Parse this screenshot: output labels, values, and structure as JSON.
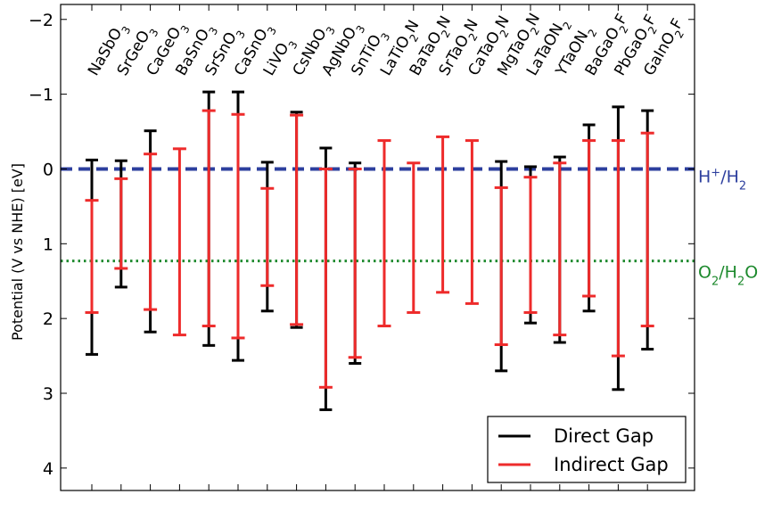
{
  "chart_data": {
    "type": "errorbar",
    "ylabel": "Potential (V vs NHE) [eV]",
    "ylim": [
      4.3,
      -2.2
    ],
    "y_inverted": true,
    "yticks": [
      -2,
      -1,
      0,
      1,
      2,
      3,
      4
    ],
    "ytick_labels": [
      "−2",
      "−1",
      "0",
      "1",
      "2",
      "3",
      "4"
    ],
    "grid": false,
    "legend_position": "lower right",
    "categories": [
      {
        "name": "NaSbO3",
        "parts": [
          [
            "NaSbO",
            0
          ],
          [
            "3",
            1
          ]
        ]
      },
      {
        "name": "SrGeO3",
        "parts": [
          [
            "SrGeO",
            0
          ],
          [
            "3",
            1
          ]
        ]
      },
      {
        "name": "CaGeO3",
        "parts": [
          [
            "CaGeO",
            0
          ],
          [
            "3",
            1
          ]
        ]
      },
      {
        "name": "BaSnO3",
        "parts": [
          [
            "BaSnO",
            0
          ],
          [
            "3",
            1
          ]
        ]
      },
      {
        "name": "SrSnO3",
        "parts": [
          [
            "SrSnO",
            0
          ],
          [
            "3",
            1
          ]
        ]
      },
      {
        "name": "CaSnO3",
        "parts": [
          [
            "CaSnO",
            0
          ],
          [
            "3",
            1
          ]
        ]
      },
      {
        "name": "LiVO3",
        "parts": [
          [
            "LiVO",
            0
          ],
          [
            "3",
            1
          ]
        ]
      },
      {
        "name": "CsNbO3",
        "parts": [
          [
            "CsNbO",
            0
          ],
          [
            "3",
            1
          ]
        ]
      },
      {
        "name": "AgNbO3",
        "parts": [
          [
            "AgNbO",
            0
          ],
          [
            "3",
            1
          ]
        ]
      },
      {
        "name": "SnTiO3",
        "parts": [
          [
            "SnTiO",
            0
          ],
          [
            "3",
            1
          ]
        ]
      },
      {
        "name": "LaTiO2N",
        "parts": [
          [
            "LaTiO",
            0
          ],
          [
            "2",
            1
          ],
          [
            "N",
            0
          ]
        ]
      },
      {
        "name": "BaTaO2N",
        "parts": [
          [
            "BaTaO",
            0
          ],
          [
            "2",
            1
          ],
          [
            "N",
            0
          ]
        ]
      },
      {
        "name": "SrTaO2N",
        "parts": [
          [
            "SrTaO",
            0
          ],
          [
            "2",
            1
          ],
          [
            "N",
            0
          ]
        ]
      },
      {
        "name": "CaTaO2N",
        "parts": [
          [
            "CaTaO",
            0
          ],
          [
            "2",
            1
          ],
          [
            "N",
            0
          ]
        ]
      },
      {
        "name": "MgTaO2N",
        "parts": [
          [
            "MgTaO",
            0
          ],
          [
            "2",
            1
          ],
          [
            "N",
            0
          ]
        ]
      },
      {
        "name": "LaTaON2",
        "parts": [
          [
            "LaTaON",
            0
          ],
          [
            "2",
            1
          ]
        ]
      },
      {
        "name": "YTaON2",
        "parts": [
          [
            "YTaON",
            0
          ],
          [
            "2",
            1
          ]
        ]
      },
      {
        "name": "BaGaO2F",
        "parts": [
          [
            "BaGaO",
            0
          ],
          [
            "2",
            1
          ],
          [
            "F",
            0
          ]
        ]
      },
      {
        "name": "PbGaO2F",
        "parts": [
          [
            "PbGaO",
            0
          ],
          [
            "2",
            1
          ],
          [
            "F",
            0
          ]
        ]
      },
      {
        "name": "GaInO2F",
        "parts": [
          [
            "GaInO",
            0
          ],
          [
            "2",
            1
          ],
          [
            "F",
            0
          ]
        ]
      }
    ],
    "series": [
      {
        "name": "Direct Gap",
        "color": "#000000",
        "top": [
          -0.12,
          -0.11,
          -0.51,
          null,
          -1.03,
          -1.03,
          -0.09,
          -0.76,
          -0.28,
          -0.08,
          null,
          null,
          null,
          null,
          -0.1,
          -0.03,
          -0.16,
          -0.59,
          -0.83,
          -0.78
        ],
        "bottom": [
          2.48,
          1.58,
          2.18,
          null,
          2.36,
          2.56,
          1.9,
          2.12,
          3.22,
          2.6,
          null,
          null,
          null,
          null,
          2.7,
          2.06,
          2.32,
          1.9,
          2.95,
          2.41
        ]
      },
      {
        "name": "Indirect Gap",
        "color": "#ee2b2b",
        "top": [
          0.42,
          0.13,
          -0.2,
          -0.27,
          -0.78,
          -0.73,
          0.26,
          -0.72,
          0.0,
          0.0,
          -0.38,
          -0.08,
          -0.43,
          -0.38,
          0.25,
          0.11,
          -0.08,
          -0.38,
          -0.38,
          -0.48
        ],
        "bottom": [
          1.92,
          1.33,
          1.88,
          2.22,
          2.1,
          2.26,
          1.56,
          2.08,
          2.92,
          2.52,
          2.1,
          1.92,
          1.65,
          1.8,
          2.35,
          1.92,
          2.22,
          1.7,
          2.5,
          2.1
        ]
      }
    ],
    "reference_lines": [
      {
        "name": "H+/H2",
        "value": 0.0,
        "color": "#2d3f9e",
        "style": "dashed",
        "label_parts": [
          [
            "H",
            0
          ],
          [
            "+",
            2
          ],
          [
            "/H",
            0
          ],
          [
            "2",
            1
          ]
        ]
      },
      {
        "name": "O2/H2O",
        "value": 1.23,
        "color": "#1e8a2e",
        "style": "dotted",
        "label_parts": [
          [
            "O",
            0
          ],
          [
            "2",
            1
          ],
          [
            "/H",
            0
          ],
          [
            "2",
            1
          ],
          [
            "O",
            0
          ]
        ]
      }
    ]
  }
}
